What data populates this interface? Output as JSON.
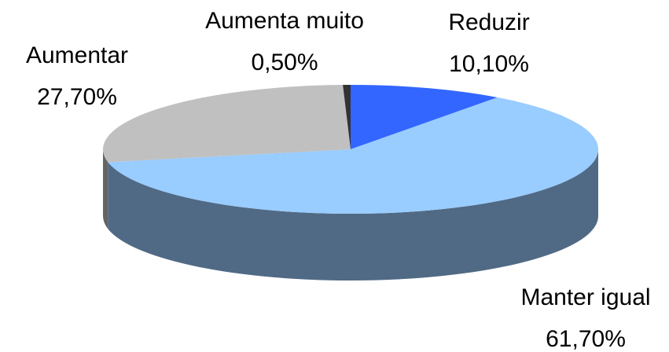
{
  "chart_data": {
    "type": "pie3d",
    "categories": [
      "Reduzir",
      "Manter igual",
      "Aumentar",
      "Aumenta muito"
    ],
    "values": [
      10.1,
      61.7,
      27.7,
      0.5
    ],
    "value_labels": [
      "10,10%",
      "61,70%",
      "27,70%",
      "0,50%"
    ],
    "colors": [
      "#3366ff",
      "#99ccff",
      "#c0c0c0",
      "#333333"
    ]
  }
}
